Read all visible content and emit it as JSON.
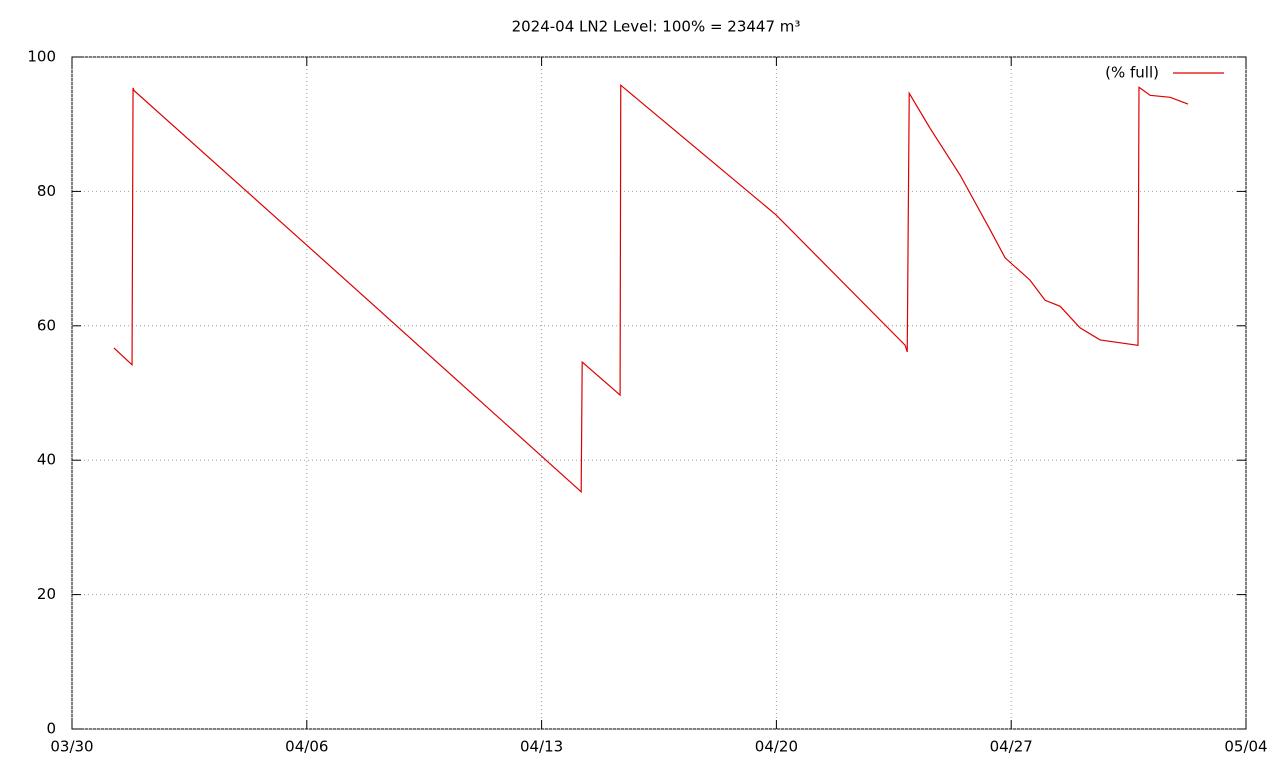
{
  "chart_data": {
    "type": "line",
    "title": "2024-04 LN2 Level: 100% = 23447 m³",
    "x": [
      1.25,
      1.79,
      1.82,
      1.85,
      7.0,
      14.0,
      15.18,
      15.21,
      16.34,
      16.36,
      20.99,
      24.84,
      24.9,
      24.96,
      25.58,
      26.48,
      27.37,
      27.82,
      28.56,
      29.01,
      29.46,
      30.05,
      30.65,
      31.78,
      31.81,
      32.14,
      32.74,
      33.27
    ],
    "series": [
      {
        "name": "(% full)",
        "color": "#dd0000",
        "values": [
          56.7,
          54.2,
          95.4,
          95.0,
          72.0,
          40.6,
          35.3,
          54.6,
          49.7,
          95.8,
          76.5,
          57.1,
          56.1,
          94.6,
          89.4,
          82.4,
          74.3,
          70.1,
          66.8,
          63.8,
          62.9,
          59.7,
          57.9,
          57.1,
          95.5,
          94.3,
          94.0,
          93.0
        ]
      }
    ],
    "xlim": [
      0,
      35
    ],
    "xticks": [
      {
        "value": 0,
        "label": "03/30"
      },
      {
        "value": 7,
        "label": "04/06"
      },
      {
        "value": 14,
        "label": "04/13"
      },
      {
        "value": 21,
        "label": "04/20"
      },
      {
        "value": 28,
        "label": "04/27"
      },
      {
        "value": 35,
        "label": "05/04"
      }
    ],
    "ylim": [
      0,
      100
    ],
    "yticks": [
      0,
      20,
      40,
      60,
      80,
      100
    ],
    "grid": true,
    "legend": "top-right"
  }
}
